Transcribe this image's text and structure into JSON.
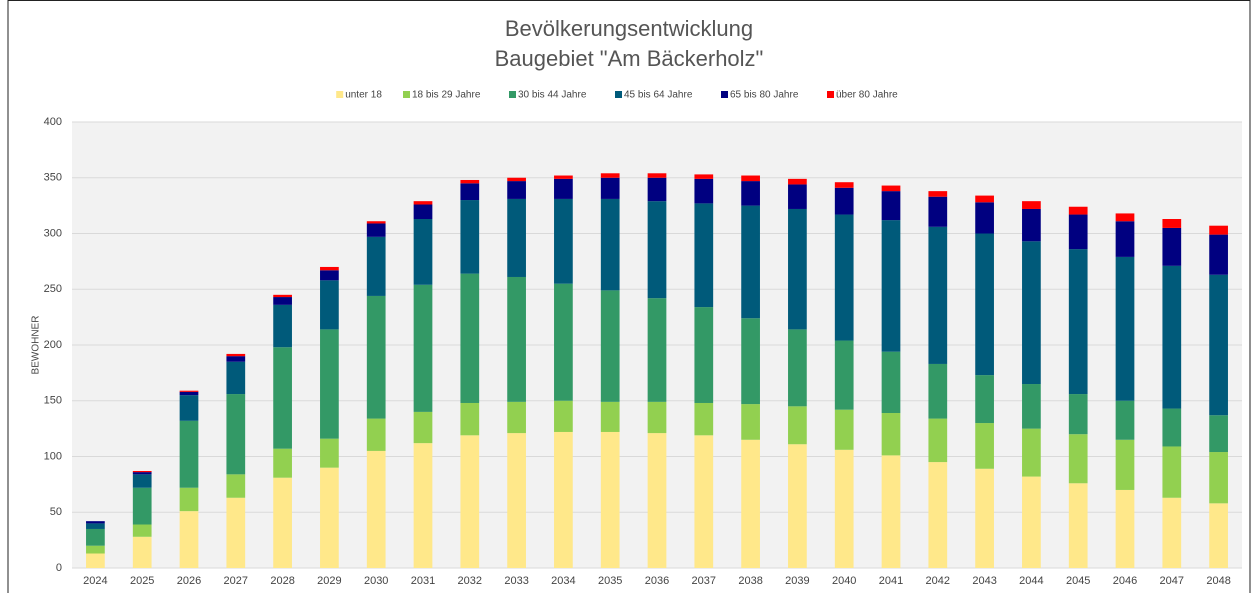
{
  "chart_data": {
    "type": "stacked_bar",
    "title": [
      "Bevölkerungsentwicklung",
      "Baugebiet \"Am Bäckerholz\""
    ],
    "y_label": "BEWOHNER",
    "categories": [
      "2024",
      "2025",
      "2026",
      "2027",
      "2028",
      "2029",
      "2030",
      "2031",
      "2032",
      "2033",
      "2034",
      "2035",
      "2036",
      "2037",
      "2038",
      "2039",
      "2040",
      "2041",
      "2042",
      "2043",
      "2044",
      "2045",
      "2046",
      "2047",
      "2048"
    ],
    "series": [
      {
        "name": "unter 18",
        "color": "#ffe88a",
        "values": [
          13,
          28,
          51,
          63,
          81,
          90,
          105,
          112,
          119,
          121,
          122,
          122,
          121,
          119,
          115,
          111,
          106,
          101,
          95,
          89,
          82,
          76,
          70,
          63,
          58
        ]
      },
      {
        "name": "18 bis 29 Jahre",
        "color": "#92d050",
        "values": [
          7,
          11,
          21,
          21,
          26,
          26,
          29,
          28,
          29,
          28,
          28,
          27,
          28,
          29,
          32,
          34,
          36,
          38,
          39,
          41,
          43,
          44,
          45,
          46,
          46
        ]
      },
      {
        "name": "30 bis 44 Jahre",
        "color": "#339966",
        "values": [
          15,
          33,
          60,
          72,
          91,
          98,
          110,
          114,
          116,
          112,
          105,
          100,
          93,
          86,
          77,
          69,
          62,
          55,
          49,
          43,
          40,
          36,
          35,
          34,
          33
        ]
      },
      {
        "name": "45 bis 64 Jahre",
        "color": "#005a7a",
        "values": [
          5,
          12,
          23,
          29,
          38,
          44,
          53,
          59,
          66,
          70,
          76,
          82,
          87,
          93,
          101,
          108,
          113,
          118,
          123,
          127,
          128,
          130,
          129,
          128,
          126
        ]
      },
      {
        "name": "65 bis 80 Jahre",
        "color": "#000080",
        "values": [
          2,
          2,
          3,
          5,
          7,
          9,
          12,
          13,
          15,
          16,
          18,
          19,
          21,
          22,
          22,
          22,
          24,
          26,
          27,
          28,
          29,
          31,
          32,
          34,
          36
        ]
      },
      {
        "name": "über 80 Jahre",
        "color": "#ff0000",
        "values": [
          0,
          1,
          1,
          2,
          2,
          3,
          2,
          3,
          3,
          3,
          3,
          4,
          4,
          4,
          5,
          5,
          5,
          5,
          5,
          6,
          7,
          7,
          7,
          8,
          8
        ]
      }
    ],
    "ylim": [
      0,
      400
    ],
    "yticks": [
      0,
      50,
      100,
      150,
      200,
      250,
      300,
      350,
      400
    ],
    "grid": true,
    "legend": "top"
  }
}
